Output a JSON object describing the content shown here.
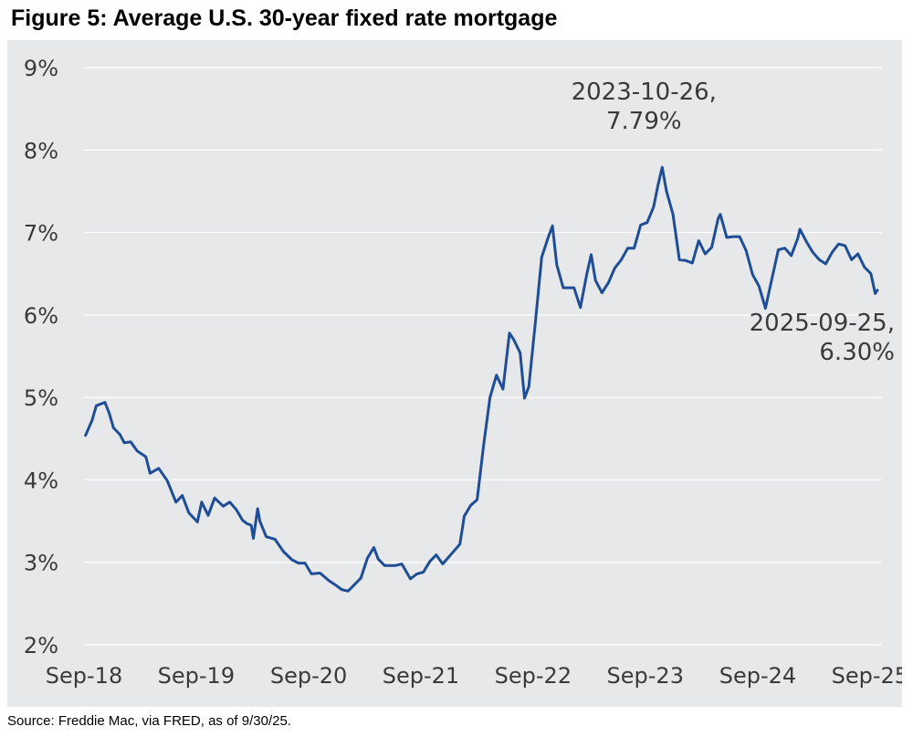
{
  "title": "Figure 5: Average U.S. 30-year fixed rate mortgage",
  "source": "Source: Freddie Mac, via FRED, as of 9/30/25.",
  "colors": {
    "line": "#1f4e96",
    "background": "#e6e8ea",
    "grid": "#ffffff"
  },
  "chart_data": {
    "type": "line",
    "title": "Figure 5: Average U.S. 30-year fixed rate mortgage",
    "xlabel": "",
    "ylabel": "",
    "xlim": [
      "2018-09-01",
      "2025-10-10"
    ],
    "ylim": [
      2,
      9
    ],
    "y_ticks": [
      9,
      8,
      7,
      6,
      5,
      4,
      3,
      2
    ],
    "y_tick_labels": [
      "9%",
      "8%",
      "7%",
      "6%",
      "5%",
      "4%",
      "3%",
      "2%"
    ],
    "x_ticks": [
      "2018-09-01",
      "2019-09-01",
      "2020-09-01",
      "2021-09-01",
      "2022-09-01",
      "2023-09-01",
      "2024-09-01",
      "2025-09-01"
    ],
    "x_tick_labels": [
      "Sep-18",
      "Sep-19",
      "Sep-20",
      "Sep-21",
      "Sep-22",
      "Sep-23",
      "Sep-24",
      "Sep-25"
    ],
    "grid": true,
    "legend": "none",
    "annotations": [
      {
        "lines": [
          "2023-10-26,",
          "7.79%"
        ],
        "x": "2023-10-26",
        "y": 7.79
      },
      {
        "lines": [
          "2025-09-25,",
          "6.30%"
        ],
        "x": "2025-09-25",
        "y": 6.3
      }
    ],
    "series": [
      {
        "x": [
          "2018-09-06",
          "2018-09-27",
          "2018-10-11",
          "2018-11-08",
          "2018-11-22",
          "2018-12-06",
          "2018-12-27",
          "2019-01-10",
          "2019-01-31",
          "2019-02-21",
          "2019-03-21",
          "2019-04-04",
          "2019-05-02",
          "2019-05-30",
          "2019-06-27",
          "2019-07-18",
          "2019-08-08",
          "2019-09-05",
          "2019-09-19",
          "2019-10-10",
          "2019-10-31",
          "2019-11-28",
          "2019-12-19",
          "2020-01-09",
          "2020-01-30",
          "2020-02-13",
          "2020-02-27",
          "2020-03-05",
          "2020-03-19",
          "2020-03-26",
          "2020-04-16",
          "2020-05-14",
          "2020-06-11",
          "2020-07-09",
          "2020-07-30",
          "2020-08-20",
          "2020-09-10",
          "2020-10-08",
          "2020-11-05",
          "2020-12-03",
          "2020-12-17",
          "2021-01-07",
          "2021-01-28",
          "2021-02-18",
          "2021-03-11",
          "2021-04-01",
          "2021-04-15",
          "2021-05-06",
          "2021-06-10",
          "2021-07-01",
          "2021-07-29",
          "2021-08-19",
          "2021-09-09",
          "2021-09-30",
          "2021-10-21",
          "2021-11-11",
          "2021-12-09",
          "2022-01-06",
          "2022-01-20",
          "2022-02-10",
          "2022-03-03",
          "2022-03-24",
          "2022-04-14",
          "2022-05-05",
          "2022-05-26",
          "2022-06-16",
          "2022-06-30",
          "2022-07-21",
          "2022-08-04",
          "2022-08-18",
          "2022-09-08",
          "2022-09-29",
          "2022-10-20",
          "2022-11-03",
          "2022-11-17",
          "2022-12-08",
          "2023-01-12",
          "2023-02-02",
          "2023-02-23",
          "2023-03-09",
          "2023-03-23",
          "2023-04-13",
          "2023-05-04",
          "2023-05-25",
          "2023-06-15",
          "2023-07-06",
          "2023-07-27",
          "2023-08-17",
          "2023-09-07",
          "2023-09-28",
          "2023-10-12",
          "2023-10-26",
          "2023-11-09",
          "2023-11-30",
          "2023-12-21",
          "2024-01-11",
          "2024-02-01",
          "2024-02-22",
          "2024-03-14",
          "2024-04-04",
          "2024-04-25",
          "2024-05-02",
          "2024-05-23",
          "2024-06-13",
          "2024-07-04",
          "2024-07-25",
          "2024-08-15",
          "2024-09-05",
          "2024-09-26",
          "2024-10-17",
          "2024-11-07",
          "2024-11-28",
          "2024-12-19",
          "2025-01-09",
          "2025-01-16",
          "2025-02-06",
          "2025-02-27",
          "2025-03-20",
          "2025-04-10",
          "2025-05-01",
          "2025-05-22",
          "2025-06-12",
          "2025-07-03",
          "2025-07-24",
          "2025-08-14",
          "2025-09-04",
          "2025-09-18",
          "2025-09-25"
        ],
        "values": [
          4.54,
          4.72,
          4.9,
          4.94,
          4.81,
          4.63,
          4.55,
          4.45,
          4.46,
          4.35,
          4.28,
          4.08,
          4.14,
          3.99,
          3.73,
          3.81,
          3.6,
          3.49,
          3.73,
          3.57,
          3.78,
          3.68,
          3.73,
          3.64,
          3.51,
          3.47,
          3.45,
          3.29,
          3.65,
          3.5,
          3.31,
          3.28,
          3.13,
          3.03,
          2.99,
          2.99,
          2.86,
          2.87,
          2.78,
          2.71,
          2.67,
          2.65,
          2.73,
          2.81,
          3.05,
          3.18,
          3.04,
          2.96,
          2.96,
          2.98,
          2.8,
          2.86,
          2.88,
          3.01,
          3.09,
          2.98,
          3.1,
          3.22,
          3.56,
          3.69,
          3.76,
          4.42,
          5.0,
          5.27,
          5.1,
          5.78,
          5.7,
          5.54,
          4.99,
          5.13,
          5.89,
          6.7,
          6.94,
          7.08,
          6.61,
          6.33,
          6.33,
          6.09,
          6.5,
          6.73,
          6.42,
          6.27,
          6.39,
          6.57,
          6.67,
          6.81,
          6.81,
          7.09,
          7.12,
          7.31,
          7.57,
          7.79,
          7.5,
          7.22,
          6.67,
          6.66,
          6.63,
          6.9,
          6.74,
          6.82,
          7.17,
          7.22,
          6.94,
          6.95,
          6.95,
          6.78,
          6.49,
          6.35,
          6.08,
          6.44,
          6.79,
          6.81,
          6.72,
          6.93,
          7.04,
          6.89,
          6.76,
          6.67,
          6.62,
          6.76,
          6.86,
          6.84,
          6.67,
          6.74,
          6.58,
          6.5,
          6.26,
          6.3
        ]
      }
    ]
  }
}
